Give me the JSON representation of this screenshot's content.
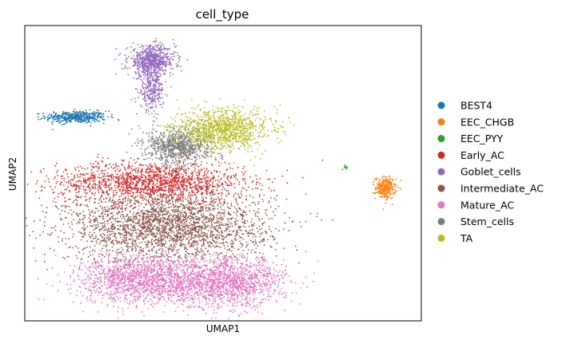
{
  "chart_data": {
    "type": "scatter",
    "title": "cell_type",
    "xlabel": "UMAP1",
    "ylabel": "UMAP2",
    "ticks": "none",
    "grid": false,
    "legend_position": "right",
    "xlim": [
      0,
      100
    ],
    "ylim": [
      0,
      100
    ],
    "series": [
      {
        "name": "BEST4",
        "color": "#1f77b4",
        "clusters": [
          {
            "cx": 13,
            "cy": 69,
            "sx": 4.5,
            "sy": 1.2,
            "n": 450
          }
        ]
      },
      {
        "name": "EEC_CHGB",
        "color": "#ff7f0e",
        "clusters": [
          {
            "cx": 91,
            "cy": 45,
            "sx": 1.5,
            "sy": 2.2,
            "n": 280
          }
        ]
      },
      {
        "name": "EEC_PYY",
        "color": "#2ca02c",
        "clusters": [
          {
            "cx": 81,
            "cy": 52,
            "sx": 0.6,
            "sy": 0.4,
            "n": 14
          }
        ]
      },
      {
        "name": "Early_AC",
        "color": "#d62728",
        "clusters": [
          {
            "cx": 32,
            "cy": 47,
            "sx": 14,
            "sy": 4,
            "n": 1600
          }
        ]
      },
      {
        "name": "Goblet_cells",
        "color": "#9467bd",
        "clusters": [
          {
            "cx": 32,
            "cy": 88,
            "sx": 3.5,
            "sy": 3,
            "n": 700
          },
          {
            "cx": 32,
            "cy": 78,
            "sx": 1.8,
            "sy": 4,
            "n": 280
          }
        ]
      },
      {
        "name": "Intermediate_AC",
        "color": "#8c564b",
        "clusters": [
          {
            "cx": 36,
            "cy": 32,
            "sx": 15,
            "sy": 7,
            "n": 2600
          }
        ]
      },
      {
        "name": "Mature_AC",
        "color": "#e377c2",
        "clusters": [
          {
            "cx": 31,
            "cy": 14,
            "sx": 10,
            "sy": 5,
            "n": 1700
          },
          {
            "cx": 52,
            "cy": 13,
            "sx": 8,
            "sy": 5,
            "n": 1300
          }
        ]
      },
      {
        "name": "Stem_cells",
        "color": "#7f7f7f",
        "clusters": [
          {
            "cx": 39,
            "cy": 59,
            "sx": 5,
            "sy": 3.5,
            "n": 900
          }
        ]
      },
      {
        "name": "TA",
        "color": "#bcbd22",
        "clusters": [
          {
            "cx": 50,
            "cy": 65,
            "sx": 7,
            "sy": 4,
            "n": 1100
          }
        ]
      }
    ]
  }
}
